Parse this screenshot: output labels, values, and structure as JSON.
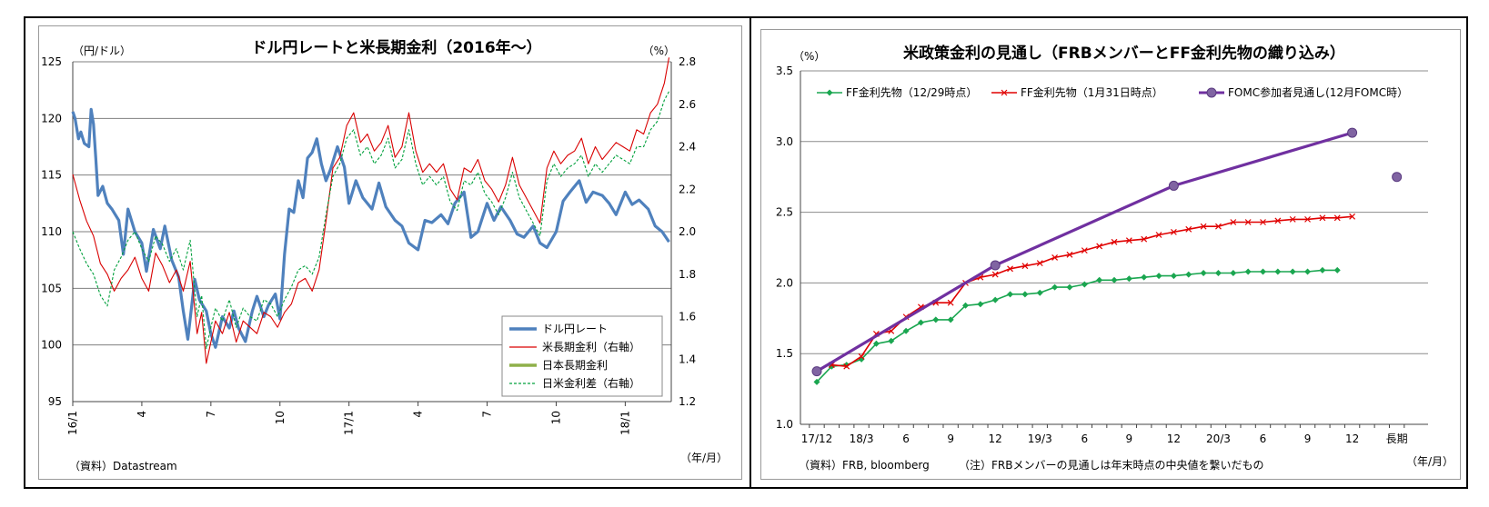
{
  "chart_data": [
    {
      "type": "line",
      "title": "ドル円レートと米長期金利（2016年～）",
      "ylabel": "（円/ドル）",
      "y2label": "（%）",
      "xlabel": "（年/月）",
      "source": "（資料）Datastream",
      "ylim": [
        95,
        125
      ],
      "yticks": [
        "95",
        "100",
        "105",
        "110",
        "115",
        "120",
        "125"
      ],
      "y2lim": [
        1.2,
        2.8
      ],
      "y2ticks": [
        "1.2",
        "1.4",
        "1.6",
        "1.8",
        "2.0",
        "2.2",
        "2.4",
        "2.6",
        "2.8"
      ],
      "x_ticks": [
        "16/1",
        "4",
        "7",
        "10",
        "17/1",
        "4",
        "7",
        "10",
        "18/1"
      ],
      "grid": true,
      "legend_position": "bottom-right",
      "series": [
        {
          "name": "ドル円レート",
          "axis": "left",
          "color": "#4f81bd",
          "style": "solid-thick",
          "x": [
            0,
            0.1,
            0.25,
            0.35,
            0.5,
            0.7,
            0.8,
            0.9,
            1.0,
            1.1,
            1.3,
            1.5,
            1.7,
            2.0,
            2.2,
            2.4,
            2.7,
            3.0,
            3.2,
            3.5,
            3.8,
            4.0,
            4.3,
            4.6,
            4.8,
            5.0,
            5.3,
            5.5,
            5.8,
            6.0,
            6.2,
            6.5,
            6.8,
            7.0,
            7.2,
            7.5,
            7.8,
            8.0,
            8.3,
            8.5,
            8.8,
            9.0,
            9.2,
            9.4,
            9.6,
            9.8,
            10.0,
            10.2,
            10.4,
            10.6,
            10.8,
            11.0,
            11.2,
            11.5,
            11.8,
            12.0,
            12.3,
            12.6,
            13.0,
            13.3,
            13.6,
            14.0,
            14.3,
            14.6,
            15.0,
            15.3,
            15.6,
            16.0,
            16.3,
            16.6,
            17.0,
            17.3,
            17.6,
            18.0,
            18.3,
            18.6,
            19.0,
            19.3,
            19.6,
            20.0,
            20.3,
            20.6,
            21.0,
            21.3,
            21.6,
            22.0,
            22.3,
            22.6,
            23.0,
            23.3,
            23.6,
            24.0,
            24.3,
            24.6,
            25.0,
            25.3,
            25.6,
            25.9
          ],
          "values": [
            120.6,
            120,
            118.2,
            118.8,
            117.8,
            117.5,
            120.8,
            119.5,
            116.5,
            113.2,
            114,
            112.5,
            112,
            111,
            108,
            112,
            110,
            109,
            106.5,
            110.2,
            108.5,
            110.5,
            107.5,
            106,
            103,
            100.5,
            105.8,
            104,
            103,
            101,
            99.8,
            102.5,
            101.5,
            103,
            101.5,
            100.3,
            103,
            104.3,
            102.5,
            103.5,
            104.5,
            102.3,
            108,
            112,
            111.7,
            114.5,
            113,
            116.5,
            117,
            118.2,
            116,
            114.5,
            115.5,
            117.5,
            115.7,
            112.5,
            114.5,
            113,
            112,
            114.3,
            112.2,
            111,
            110.5,
            109,
            108.4,
            111,
            110.8,
            111.5,
            110.7,
            112.5,
            113.5,
            109.5,
            110,
            112.5,
            111,
            112.2,
            111,
            109.8,
            109.5,
            110.5,
            109,
            108.6,
            110,
            112.7,
            113.5,
            114.5,
            112.6,
            113.5,
            113.2,
            112.5,
            111.5,
            113.5,
            112.4,
            112.8,
            112,
            110.5,
            110,
            109.1
          ]
        },
        {
          "name": "米長期金利（右軸）",
          "axis": "right",
          "color": "#d90000",
          "style": "solid",
          "x": [
            0,
            0.3,
            0.6,
            0.9,
            1.2,
            1.5,
            1.8,
            2.1,
            2.4,
            2.7,
            3.0,
            3.3,
            3.6,
            3.9,
            4.2,
            4.5,
            4.8,
            5.1,
            5.4,
            5.6,
            5.8,
            6.0,
            6.2,
            6.5,
            6.8,
            7.1,
            7.4,
            7.7,
            8.0,
            8.3,
            8.6,
            8.9,
            9.2,
            9.5,
            9.8,
            10.1,
            10.4,
            10.7,
            11.0,
            11.3,
            11.6,
            11.9,
            12.2,
            12.5,
            12.8,
            13.1,
            13.4,
            13.7,
            14.0,
            14.3,
            14.6,
            14.9,
            15.2,
            15.5,
            15.8,
            16.1,
            16.4,
            16.7,
            17.0,
            17.3,
            17.6,
            17.9,
            18.2,
            18.5,
            18.8,
            19.1,
            19.4,
            19.7,
            20.0,
            20.3,
            20.6,
            20.9,
            21.2,
            21.5,
            21.8,
            22.1,
            22.4,
            22.7,
            23.0,
            23.3,
            23.6,
            23.9,
            24.2,
            24.5,
            24.8,
            25.1,
            25.4,
            25.7,
            25.9
          ],
          "values": [
            2.27,
            2.15,
            2.05,
            1.98,
            1.85,
            1.8,
            1.72,
            1.78,
            1.82,
            1.88,
            1.78,
            1.72,
            1.9,
            1.84,
            1.76,
            1.82,
            1.72,
            1.86,
            1.52,
            1.62,
            1.38,
            1.48,
            1.58,
            1.52,
            1.62,
            1.48,
            1.58,
            1.55,
            1.52,
            1.62,
            1.6,
            1.55,
            1.62,
            1.66,
            1.76,
            1.78,
            1.72,
            1.82,
            2.05,
            2.3,
            2.35,
            2.5,
            2.56,
            2.42,
            2.46,
            2.38,
            2.42,
            2.5,
            2.35,
            2.4,
            2.56,
            2.38,
            2.28,
            2.32,
            2.28,
            2.32,
            2.2,
            2.15,
            2.3,
            2.28,
            2.34,
            2.24,
            2.2,
            2.14,
            2.22,
            2.35,
            2.22,
            2.16,
            2.1,
            2.04,
            2.3,
            2.38,
            2.32,
            2.36,
            2.38,
            2.44,
            2.32,
            2.4,
            2.34,
            2.38,
            2.42,
            2.4,
            2.38,
            2.48,
            2.46,
            2.56,
            2.6,
            2.7,
            2.82
          ]
        },
        {
          "name": "日本長期金利",
          "axis": "right",
          "color": "#8fb04a",
          "style": "solid-thick",
          "x": [],
          "values": []
        },
        {
          "name": "日米金利差（右軸）",
          "axis": "right",
          "color": "#00a03c",
          "style": "dashed",
          "x": [
            0,
            0.3,
            0.6,
            0.9,
            1.2,
            1.5,
            1.8,
            2.1,
            2.4,
            2.7,
            3.0,
            3.3,
            3.6,
            3.9,
            4.2,
            4.5,
            4.8,
            5.1,
            5.4,
            5.6,
            5.8,
            6.0,
            6.2,
            6.5,
            6.8,
            7.1,
            7.4,
            7.7,
            8.0,
            8.3,
            8.6,
            8.9,
            9.2,
            9.5,
            9.8,
            10.1,
            10.4,
            10.7,
            11.0,
            11.3,
            11.6,
            11.9,
            12.2,
            12.5,
            12.8,
            13.1,
            13.4,
            13.7,
            14.0,
            14.3,
            14.6,
            14.9,
            15.2,
            15.5,
            15.8,
            16.1,
            16.4,
            16.7,
            17.0,
            17.3,
            17.6,
            17.9,
            18.2,
            18.5,
            18.8,
            19.1,
            19.4,
            19.7,
            20.0,
            20.3,
            20.6,
            20.9,
            21.2,
            21.5,
            21.8,
            22.1,
            22.4,
            22.7,
            23.0,
            23.3,
            23.6,
            23.9,
            24.2,
            24.5,
            24.8,
            25.1,
            25.4,
            25.7,
            25.9
          ],
          "values": [
            2.0,
            1.92,
            1.85,
            1.8,
            1.7,
            1.65,
            1.82,
            1.88,
            1.96,
            2.0,
            1.92,
            1.86,
            1.98,
            1.94,
            1.86,
            1.92,
            1.82,
            1.96,
            1.6,
            1.7,
            1.45,
            1.55,
            1.64,
            1.58,
            1.68,
            1.55,
            1.64,
            1.6,
            1.58,
            1.68,
            1.66,
            1.6,
            1.68,
            1.74,
            1.82,
            1.84,
            1.8,
            1.88,
            2.08,
            2.26,
            2.32,
            2.44,
            2.48,
            2.36,
            2.4,
            2.32,
            2.36,
            2.44,
            2.3,
            2.34,
            2.48,
            2.32,
            2.22,
            2.26,
            2.22,
            2.26,
            2.14,
            2.1,
            2.24,
            2.22,
            2.28,
            2.18,
            2.14,
            2.08,
            2.16,
            2.28,
            2.16,
            2.1,
            2.04,
            1.98,
            2.24,
            2.32,
            2.26,
            2.3,
            2.32,
            2.36,
            2.26,
            2.32,
            2.28,
            2.32,
            2.36,
            2.34,
            2.32,
            2.4,
            2.4,
            2.48,
            2.52,
            2.62,
            2.66
          ]
        }
      ]
    },
    {
      "type": "line",
      "title": "米政策金利の見通し（FRBメンバーとFF金利先物の織り込み）",
      "ylabel": "（%）",
      "xlabel": "（年/月）",
      "source": "（資料）FRB, bloomberg",
      "note": "（注）FRBメンバーの見通しは年末時点の中央値を繋いだもの",
      "ylim": [
        1.0,
        3.5
      ],
      "yticks": [
        "1.0",
        "1.5",
        "2.0",
        "2.5",
        "3.0",
        "3.5"
      ],
      "x_ticks": [
        "17/12",
        "18/3",
        "6",
        "9",
        "12",
        "19/3",
        "6",
        "9",
        "12",
        "20/3",
        "6",
        "9",
        "12",
        "長期"
      ],
      "grid": true,
      "legend_position": "top",
      "series": [
        {
          "name": "FF金利先物（12/29時点）",
          "color": "#1aa650",
          "marker": "diamond",
          "x": [
            0,
            1,
            2,
            3,
            4,
            5,
            6,
            7,
            8,
            9,
            10,
            11,
            12,
            13,
            14,
            15,
            16,
            17,
            18,
            19,
            20,
            21,
            22,
            23,
            24,
            25,
            26,
            27,
            28,
            29,
            30,
            31,
            32,
            33,
            34,
            35
          ],
          "values": [
            1.3,
            1.41,
            1.42,
            1.46,
            1.57,
            1.59,
            1.66,
            1.72,
            1.74,
            1.74,
            1.84,
            1.85,
            1.88,
            1.92,
            1.92,
            1.93,
            1.97,
            1.97,
            1.99,
            2.02,
            2.02,
            2.03,
            2.04,
            2.05,
            2.05,
            2.06,
            2.07,
            2.07,
            2.07,
            2.08,
            2.08,
            2.08,
            2.08,
            2.08,
            2.09,
            2.09
          ]
        },
        {
          "name": "FF金利先物（1月31日時点）",
          "color": "#e00000",
          "marker": "x",
          "x": [
            1,
            2,
            3,
            4,
            5,
            6,
            7,
            8,
            9,
            10,
            11,
            12,
            13,
            14,
            15,
            16,
            17,
            18,
            19,
            20,
            21,
            22,
            23,
            24,
            25,
            26,
            27,
            28,
            29,
            30,
            31,
            32,
            33,
            34,
            35,
            36
          ],
          "values": [
            1.42,
            1.41,
            1.48,
            1.64,
            1.66,
            1.76,
            1.83,
            1.86,
            1.86,
            2.0,
            2.04,
            2.06,
            2.1,
            2.12,
            2.14,
            2.18,
            2.2,
            2.23,
            2.26,
            2.29,
            2.3,
            2.31,
            2.34,
            2.36,
            2.38,
            2.4,
            2.4,
            2.43,
            2.43,
            2.43,
            2.44,
            2.45,
            2.45,
            2.46,
            2.46,
            2.47
          ]
        },
        {
          "name": "FOMC参加者見通し(12月FOMC時）",
          "color": "#7030a0",
          "marker": "circle",
          "x": [
            0,
            12,
            24,
            36
          ],
          "values": [
            1.375,
            2.125,
            2.6875,
            3.0625
          ]
        },
        {
          "name": "長期",
          "color": "#7030a0",
          "marker": "circle",
          "in_legend": false,
          "x": [
            39
          ],
          "values": [
            2.75
          ]
        }
      ]
    }
  ]
}
